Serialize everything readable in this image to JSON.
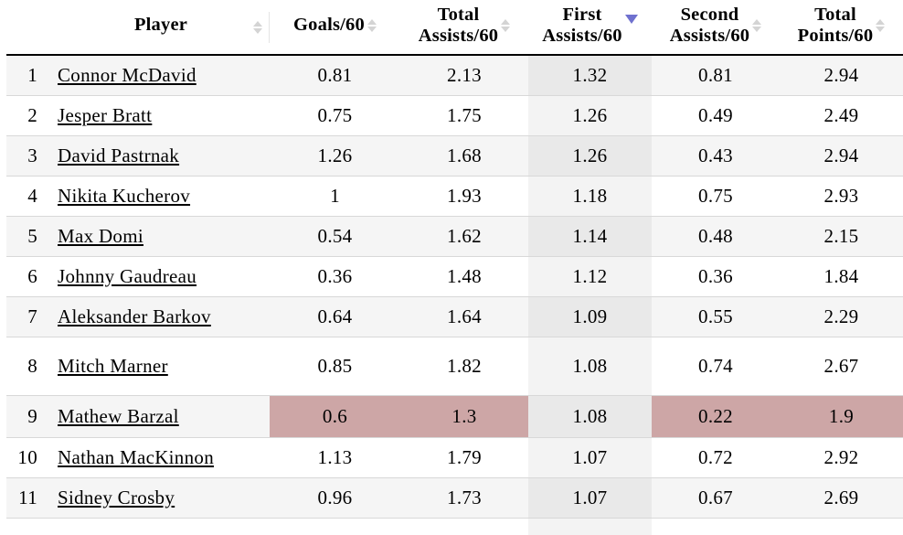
{
  "table": {
    "sorted_key": "first_assists60",
    "sort_direction": "desc",
    "stat_keys": [
      "goals60",
      "total_assists60",
      "first_assists60",
      "second_assists60",
      "total_points60"
    ],
    "columns": [
      {
        "key": "rank",
        "lines": []
      },
      {
        "key": "player",
        "lines": [
          "Player"
        ],
        "sortable": true
      },
      {
        "key": "goals60",
        "lines": [
          "Goals/60"
        ],
        "sortable": true
      },
      {
        "key": "total_assists60",
        "lines": [
          "Total",
          "Assists/60"
        ],
        "sortable": true
      },
      {
        "key": "first_assists60",
        "lines": [
          "First",
          "Assists/60"
        ],
        "sortable": true,
        "sorted": "desc"
      },
      {
        "key": "second_assists60",
        "lines": [
          "Second",
          "Assists/60"
        ],
        "sortable": true
      },
      {
        "key": "total_points60",
        "lines": [
          "Total",
          "Points/60"
        ],
        "sortable": true
      }
    ],
    "rows": [
      {
        "rank": "1",
        "player": "Connor McDavid",
        "goals60": "0.81",
        "total_assists60": "2.13",
        "first_assists60": "1.32",
        "second_assists60": "0.81",
        "total_points60": "2.94"
      },
      {
        "rank": "2",
        "player": "Jesper Bratt",
        "goals60": "0.75",
        "total_assists60": "1.75",
        "first_assists60": "1.26",
        "second_assists60": "0.49",
        "total_points60": "2.49"
      },
      {
        "rank": "3",
        "player": "David Pastrnak",
        "goals60": "1.26",
        "total_assists60": "1.68",
        "first_assists60": "1.26",
        "second_assists60": "0.43",
        "total_points60": "2.94"
      },
      {
        "rank": "4",
        "player": "Nikita Kucherov",
        "goals60": "1",
        "total_assists60": "1.93",
        "first_assists60": "1.18",
        "second_assists60": "0.75",
        "total_points60": "2.93"
      },
      {
        "rank": "5",
        "player": "Max Domi",
        "goals60": "0.54",
        "total_assists60": "1.62",
        "first_assists60": "1.14",
        "second_assists60": "0.48",
        "total_points60": "2.15"
      },
      {
        "rank": "6",
        "player": "Johnny Gaudreau",
        "goals60": "0.36",
        "total_assists60": "1.48",
        "first_assists60": "1.12",
        "second_assists60": "0.36",
        "total_points60": "1.84"
      },
      {
        "rank": "7",
        "player": "Aleksander Barkov",
        "goals60": "0.64",
        "total_assists60": "1.64",
        "first_assists60": "1.09",
        "second_assists60": "0.55",
        "total_points60": "2.29"
      },
      {
        "rank": "8",
        "player": "Mitch Marner",
        "goals60": "0.85",
        "total_assists60": "1.82",
        "first_assists60": "1.08",
        "second_assists60": "0.74",
        "total_points60": "2.67"
      },
      {
        "rank": "9",
        "player": "Mathew Barzal",
        "goals60": "0.6",
        "total_assists60": "1.3",
        "first_assists60": "1.08",
        "second_assists60": "0.22",
        "total_points60": "1.9",
        "flagged": [
          "goals60",
          "total_assists60",
          "second_assists60",
          "total_points60"
        ]
      },
      {
        "rank": "10",
        "player": "Nathan MacKinnon",
        "goals60": "1.13",
        "total_assists60": "1.79",
        "first_assists60": "1.07",
        "second_assists60": "0.72",
        "total_points60": "2.92"
      },
      {
        "rank": "11",
        "player": "Sidney Crosby",
        "goals60": "0.96",
        "total_assists60": "1.73",
        "first_assists60": "1.07",
        "second_assists60": "0.67",
        "total_points60": "2.69"
      }
    ]
  },
  "colors": {
    "flag_highlight": "#cda6a6",
    "active_sort_arrow": "#6f71cf",
    "inactive_sort_arrow": "#d4d4d4",
    "zebra_stripe": "#f5f5f5",
    "row_border": "#d8d8d8",
    "header_border": "#000000"
  }
}
